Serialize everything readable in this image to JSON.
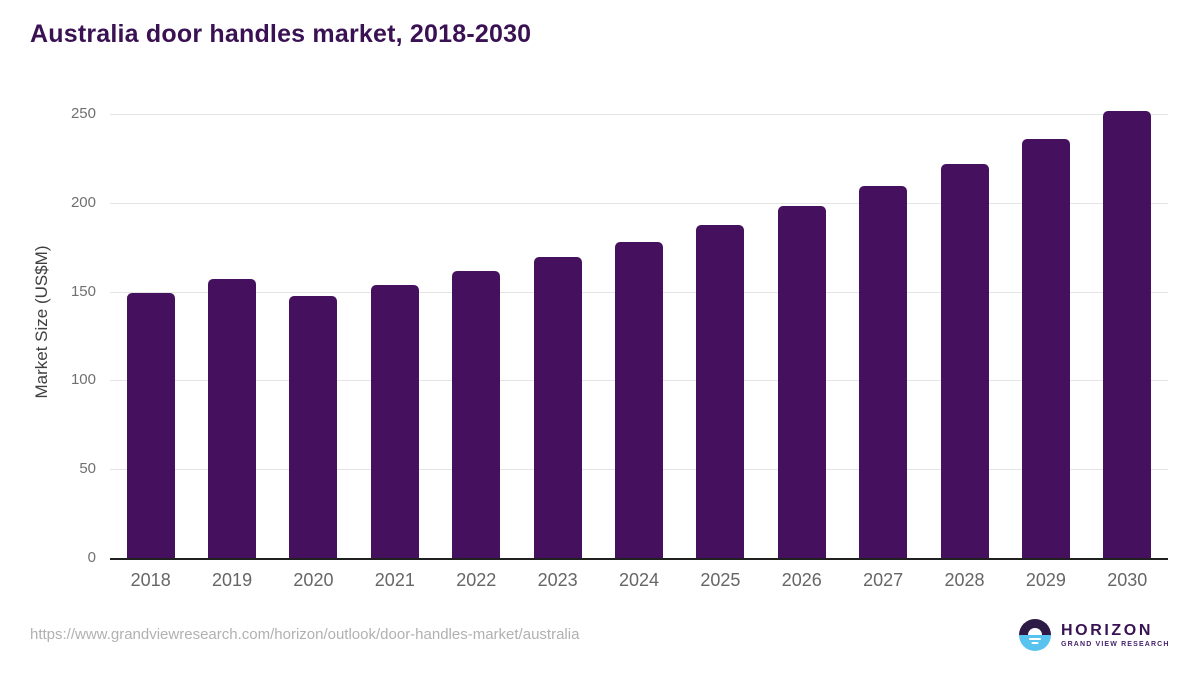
{
  "title": "Australia door handles market, 2018-2030",
  "chart_data": {
    "type": "bar",
    "title": "Australia door handles market, 2018-2030",
    "categories": [
      "2018",
      "2019",
      "2020",
      "2021",
      "2022",
      "2023",
      "2024",
      "2025",
      "2026",
      "2027",
      "2028",
      "2029",
      "2030"
    ],
    "values": [
      149.5,
      156.9,
      147.3,
      154.0,
      161.4,
      169.5,
      177.9,
      187.4,
      198.3,
      209.4,
      222.1,
      236.2,
      251.9
    ],
    "xlabel": "",
    "ylabel": "Market Size (US$M)",
    "ylim": [
      0,
      250
    ],
    "yticks": [
      0,
      50,
      100,
      150,
      200,
      250
    ],
    "grid": true,
    "legend": false,
    "bar_color": "#45115f"
  },
  "footer": {
    "source_url": "https://www.grandviewresearch.com/horizon/outlook/door-handles-market/australia",
    "logo": {
      "name": "HORIZON",
      "subtitle": "GRAND VIEW RESEARCH"
    }
  },
  "colors": {
    "bar": "#45115f",
    "title_text": "#3a1253",
    "axis_line": "#202020",
    "gridline": "#e4e4e4",
    "y_tick_text": "#707070",
    "x_tick_text": "#666666",
    "axis_title_text": "#3f3f3f",
    "url_text": "#b1b1b1",
    "logo_purple": "#2d1a47",
    "logo_blue": "#58c3ef"
  }
}
